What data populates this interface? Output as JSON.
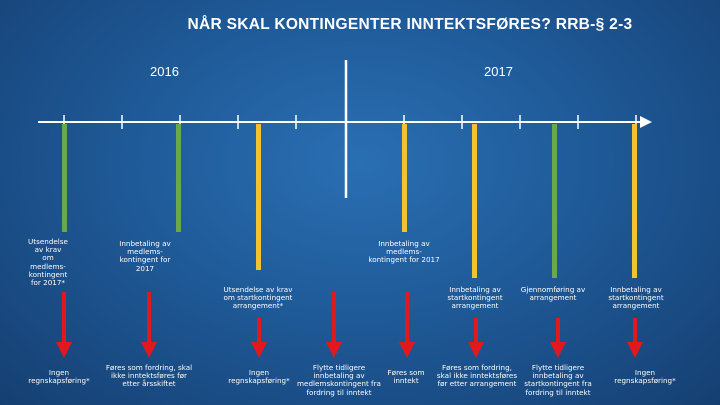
{
  "title": "NÅR SKAL KONTINGENTER INNTEKTSFØRES? RRB-§ 2-3",
  "years": {
    "left": "2016",
    "right": "2017"
  },
  "colors": {
    "green": "#6aa84f",
    "yellow": "#f1c232",
    "red": "#e0191f",
    "axis": "#ffffff"
  },
  "top_labels": [
    "Utsendelse av krav om medlems-kontingent for 2017*",
    "Innbetaling av medlems-kontingent for 2017",
    "Utsendelse av krav om startkontingent arrangement*",
    "Innbetaling av medlems-kontingent for 2017",
    "Innbetaling av startkontingent arrangement",
    "Gjennomføring av arrangement",
    "Innbetaling av startkontingent arrangement"
  ],
  "bottom_labels": [
    "Ingen regnskapsføring*",
    "Føres som fordring, skal ikke inntektsføres før etter årsskiftet",
    "Ingen regnskapsføring*",
    "Flytte tidligere innbetaling av medlemskontingent fra fordring til inntekt",
    "Føres som inntekt",
    "Føres som fordring, skal ikke inntektsføres før etter arrangement",
    "Flytte tidligere innbetaling av startkontingent fra fordring til inntekt",
    "Ingen regnskapsføring*"
  ]
}
